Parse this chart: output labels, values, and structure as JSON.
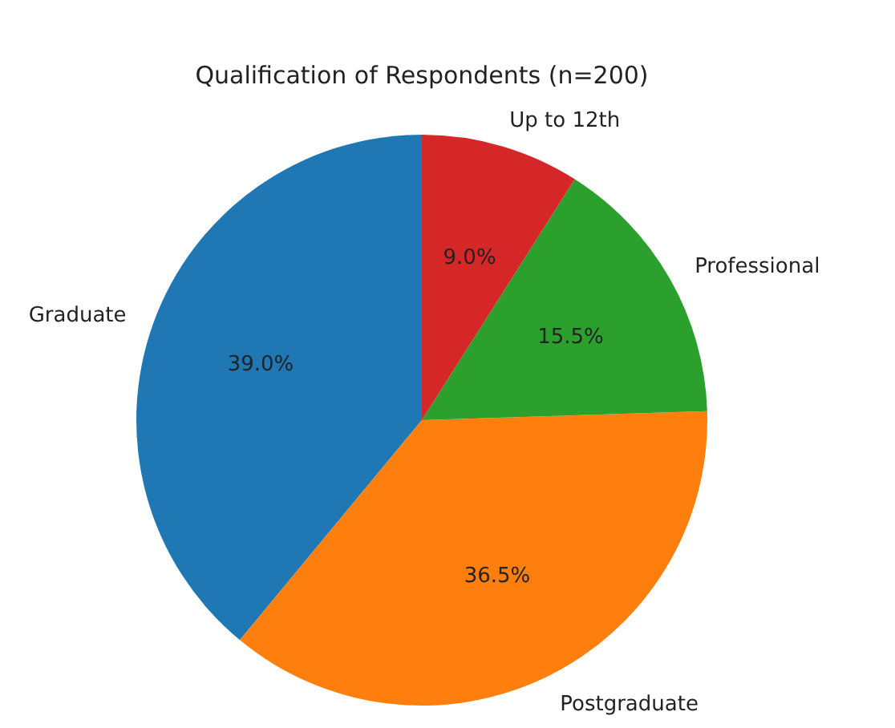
{
  "chart_data": {
    "type": "pie",
    "title": "Qualification of Respondents (n=200)",
    "categories": [
      "Graduate",
      "Postgraduate",
      "Professional",
      "Up to 12th"
    ],
    "values": [
      39.0,
      36.5,
      15.5,
      9.0
    ],
    "colors": [
      "#1f77b4",
      "#ff7f0e",
      "#2ca02c",
      "#d62728"
    ],
    "value_labels": [
      "39.0%",
      "36.5%",
      "15.5%",
      "9.0%"
    ]
  }
}
